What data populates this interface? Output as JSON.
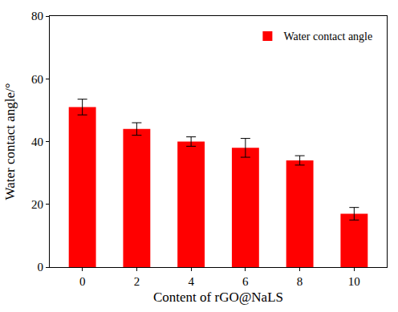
{
  "chart_data": {
    "type": "bar",
    "x_label": "Content of rGO@NaLS",
    "y_label": "Water contact angle/°",
    "categories": [
      "0",
      "2",
      "4",
      "6",
      "8",
      "10"
    ],
    "series": [
      {
        "name": "Water contact angle",
        "color": "#ff0000",
        "values": [
          51,
          44,
          40,
          38,
          34,
          17
        ],
        "errors": [
          2.5,
          2,
          1.5,
          3,
          1.5,
          2
        ]
      }
    ],
    "ylim": [
      0,
      80
    ],
    "yticks": [
      0,
      20,
      40,
      60,
      80
    ],
    "grid": false,
    "legend": "upper right"
  }
}
